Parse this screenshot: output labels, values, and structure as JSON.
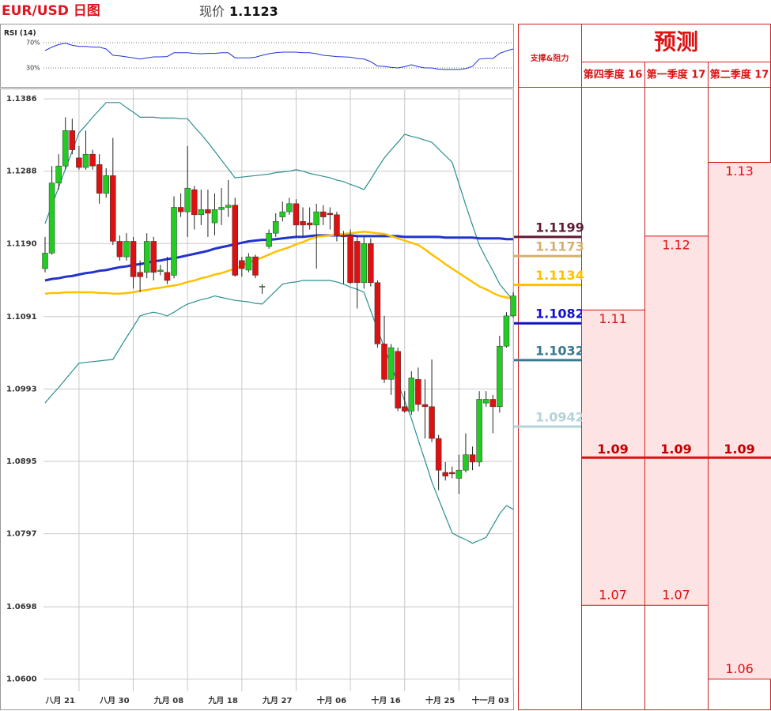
{
  "header": {
    "title": "EUR/USD 日图",
    "price_label": "现价",
    "price": 1.1123
  },
  "chart_data": [
    {
      "type": "candlestick",
      "categories": [
        null,
        null,
        null,
        null,
        null,
        "八月 21",
        null,
        null,
        null,
        null,
        null,
        null,
        null,
        "八月 30",
        null,
        null,
        null,
        null,
        null,
        null,
        null,
        "九月 08",
        null,
        null,
        null,
        null,
        null,
        null,
        null,
        "九月 18",
        null,
        null,
        null,
        null,
        null,
        null,
        null,
        "九月 27",
        null,
        null,
        null,
        null,
        null,
        null,
        null,
        "十月 06",
        null,
        null,
        null,
        null,
        null,
        null,
        null,
        "十月 16",
        null,
        null,
        null,
        null,
        null,
        null,
        null,
        "十月 25",
        null,
        null,
        null,
        null,
        null,
        null,
        null,
        "十一月 03"
      ],
      "open": [
        1.1156,
        1.1177,
        1.1272,
        1.1295,
        1.1343,
        1.1306,
        1.1293,
        1.1311,
        1.1297,
        1.1258,
        1.1282,
        1.1193,
        1.1172,
        1.1193,
        1.1151,
        1.1151,
        1.1193,
        1.1152,
        1.1151,
        1.1147,
        1.1239,
        1.1233,
        1.1263,
        1.1229,
        1.1236,
        1.1218,
        1.1236,
        1.1239,
        1.1242,
        1.1167,
        1.1154,
        1.1172,
        1.1132,
        1.1186,
        1.1204,
        1.1226,
        1.1233,
        1.1244,
        1.122,
        1.1218,
        1.1215,
        1.1233,
        1.1231,
        1.1229,
        1.1201,
        1.1201,
        1.1193,
        1.1137,
        1.119,
        1.1137,
        1.1054,
        1.1006,
        1.1044,
        1.0969,
        1.0963,
        1.1006,
        1.0972,
        1.0969,
        1.0926,
        1.088,
        1.088,
        1.0872,
        1.0883,
        1.0904,
        1.0894,
        1.0974,
        1.0979,
        1.0969,
        1.1051,
        1.1092
      ],
      "high": [
        1.1199,
        1.1295,
        1.1311,
        1.1361,
        1.1359,
        1.1322,
        1.1343,
        1.1317,
        1.1311,
        1.1292,
        1.1333,
        1.1201,
        1.1204,
        1.1199,
        1.1167,
        1.1204,
        1.1199,
        1.1161,
        1.1172,
        1.1254,
        1.1258,
        1.1322,
        1.1268,
        1.1263,
        1.1263,
        1.1258,
        1.1265,
        1.1276,
        1.1252,
        1.1172,
        1.1177,
        1.1175,
        1.1135,
        1.1209,
        1.1231,
        1.1247,
        1.1252,
        1.125,
        1.1239,
        1.1239,
        1.1244,
        1.1242,
        1.1239,
        1.1233,
        1.1207,
        1.1209,
        1.1201,
        1.1199,
        1.1197,
        1.114,
        1.1092,
        1.1054,
        1.1049,
        1.099,
        1.1017,
        1.1022,
        1.1006,
        1.1033,
        1.0931,
        1.0894,
        1.0888,
        1.0904,
        1.0933,
        1.0915,
        1.099,
        1.099,
        1.0985,
        1.1065,
        1.1097,
        1.1124
      ],
      "low": [
        1.1151,
        1.1175,
        1.1263,
        1.129,
        1.1311,
        1.129,
        1.129,
        1.129,
        1.1244,
        1.1252,
        1.1188,
        1.1167,
        1.1167,
        1.1129,
        1.1124,
        1.1143,
        1.114,
        1.1147,
        1.1135,
        1.1143,
        1.1226,
        1.1199,
        1.1209,
        1.1215,
        1.1199,
        1.1201,
        1.1215,
        1.1226,
        1.1145,
        1.1145,
        1.1151,
        1.1143,
        1.1122,
        1.1183,
        1.1199,
        1.122,
        1.1229,
        1.1199,
        1.1199,
        1.1209,
        1.1156,
        1.1215,
        1.1209,
        1.1193,
        1.1135,
        1.1135,
        1.1102,
        1.1129,
        1.1132,
        1.1049,
        1.1001,
        1.0985,
        1.0963,
        1.0961,
        1.0958,
        1.0963,
        1.0926,
        1.0921,
        1.0856,
        1.0869,
        1.0872,
        1.0851,
        1.088,
        1.0883,
        1.0888,
        1.0969,
        1.0933,
        1.0961,
        1.1049,
        1.109
      ],
      "close": [
        1.1177,
        1.1272,
        1.1295,
        1.1343,
        1.1317,
        1.1293,
        1.1311,
        1.1295,
        1.1258,
        1.1282,
        1.1193,
        1.1172,
        1.1193,
        1.1145,
        1.1145,
        1.1193,
        1.1151,
        1.1154,
        1.114,
        1.1239,
        1.1233,
        1.1265,
        1.1229,
        1.1236,
        1.1231,
        1.1236,
        1.1239,
        1.1242,
        1.1147,
        1.1156,
        1.1172,
        1.1147,
        1.1132,
        1.1204,
        1.122,
        1.1233,
        1.1244,
        1.1215,
        1.1215,
        1.1215,
        1.1233,
        1.1226,
        1.1229,
        1.1201,
        1.1199,
        1.1137,
        1.1137,
        1.119,
        1.1137,
        1.1054,
        1.1006,
        1.1049,
        1.0967,
        1.0963,
        1.1008,
        1.0972,
        1.0969,
        1.0926,
        1.0883,
        1.0875,
        1.0878,
        1.0883,
        1.0904,
        1.0894,
        1.0979,
        1.0979,
        1.0969,
        1.1051,
        1.1092,
        1.1119
      ],
      "up_color": "#22cc22",
      "down_color": "#dd1111",
      "lines": [
        {
          "color": "#2a8f8f",
          "values": [
            1.1217,
            1.1242,
            1.1266,
            1.1291,
            1.1315,
            1.134,
            1.135,
            1.1361,
            1.1371,
            1.1381,
            1.1381,
            1.1381,
            1.1374,
            1.1368,
            1.1361,
            1.1361,
            1.1361,
            1.136,
            1.136,
            1.136,
            1.1359,
            1.1359,
            1.1348,
            1.1338,
            1.1327,
            1.1315,
            1.1303,
            1.1291,
            1.1279,
            1.128,
            1.1281,
            1.1282,
            1.1283,
            1.1284,
            1.1286,
            1.1287,
            1.1288,
            1.129,
            1.1288,
            1.1285,
            1.1283,
            1.1281,
            1.1279,
            1.1276,
            1.1274,
            1.127,
            1.1267,
            1.1263,
            1.1277,
            1.1292,
            1.1306,
            1.1317,
            1.1327,
            1.1338,
            1.1335,
            1.1333,
            1.133,
            1.1327,
            1.1318,
            1.1309,
            1.13,
            1.1271,
            1.1242,
            1.1215,
            1.1188,
            1.117,
            1.1153,
            1.1135,
            1.1124,
            1.1113
          ]
        },
        {
          "color": "#2a8f8f",
          "values": [
            1.0974,
            1.0985,
            1.0995,
            1.1006,
            1.1017,
            1.1028,
            1.1029,
            1.103,
            1.1031,
            1.1032,
            1.1033,
            1.1048,
            1.1063,
            1.1077,
            1.1092,
            1.1095,
            1.1097,
            1.1095,
            1.1092,
            1.1097,
            1.1103,
            1.1108,
            1.1111,
            1.1114,
            1.1116,
            1.1119,
            1.1117,
            1.1115,
            1.1113,
            1.1112,
            1.1111,
            1.1109,
            1.1108,
            1.1117,
            1.1126,
            1.1135,
            1.1137,
            1.1138,
            1.114,
            1.114,
            1.114,
            1.114,
            1.114,
            1.1138,
            1.1135,
            1.1131,
            1.1128,
            1.1124,
            1.1099,
            1.1074,
            1.1049,
            1.1025,
            1.1001,
            1.0977,
            1.0953,
            1.0924,
            1.0896,
            1.0867,
            1.0844,
            1.0821,
            1.0798,
            1.0793,
            1.0789,
            1.0784,
            1.0788,
            1.0792,
            1.0808,
            1.0824,
            1.0835,
            1.083
          ]
        },
        {
          "color": "#2233cc",
          "values": [
            1.114,
            1.1142,
            1.1143,
            1.1145,
            1.1146,
            1.1148,
            1.115,
            1.1151,
            1.1153,
            1.1154,
            1.1156,
            1.1158,
            1.1159,
            1.1161,
            1.1162,
            1.1164,
            1.1166,
            1.1167,
            1.1169,
            1.117,
            1.1172,
            1.1174,
            1.1176,
            1.1178,
            1.118,
            1.1183,
            1.1185,
            1.1187,
            1.1189,
            1.1191,
            1.1193,
            1.1194,
            1.1195,
            1.1195,
            1.1196,
            1.1197,
            1.1198,
            1.1199,
            1.1199,
            1.12,
            1.1201,
            1.1201,
            1.1201,
            1.1201,
            1.1201,
            1.1201,
            1.12,
            1.12,
            1.12,
            1.12,
            1.12,
            1.12,
            1.12,
            1.1199,
            1.1199,
            1.1199,
            1.1199,
            1.1199,
            1.1199,
            1.1198,
            1.1198,
            1.1198,
            1.1198,
            1.1198,
            1.1197,
            1.1197,
            1.1197,
            1.1197,
            1.1196,
            1.1196
          ]
        },
        {
          "color": "#ffc000",
          "values": [
            1.1122,
            1.1123,
            1.1123,
            1.1124,
            1.1124,
            1.1124,
            1.1124,
            1.1124,
            1.1123,
            1.1123,
            1.1122,
            1.1122,
            1.1123,
            1.1124,
            1.1126,
            1.1127,
            1.1129,
            1.113,
            1.1132,
            1.1133,
            1.1135,
            1.1138,
            1.114,
            1.1143,
            1.1145,
            1.1148,
            1.115,
            1.1153,
            1.1156,
            1.116,
            1.1164,
            1.1168,
            1.1171,
            1.1175,
            1.1179,
            1.1182,
            1.1185,
            1.1189,
            1.1192,
            1.1196,
            1.1199,
            1.12,
            1.1201,
            1.1202,
            1.1203,
            1.1204,
            1.1205,
            1.1206,
            1.1205,
            1.1204,
            1.1203,
            1.12,
            1.1197,
            1.1194,
            1.1191,
            1.1188,
            1.1182,
            1.1175,
            1.1169,
            1.1162,
            1.1156,
            1.115,
            1.1144,
            1.1138,
            1.1132,
            1.1128,
            1.1123,
            1.1119,
            1.1117,
            1.1115
          ]
        }
      ],
      "levels_title": "支撑&阻力",
      "levels": [
        {
          "value": 1.1199,
          "color": "#5c1a33"
        },
        {
          "value": 1.1173,
          "color": "#d4b06a"
        },
        {
          "value": 1.1134,
          "color": "#ffc000"
        },
        {
          "value": 1.1082,
          "color": "#1111cc"
        },
        {
          "value": 1.1032,
          "color": "#3a7892"
        },
        {
          "value": 1.0942,
          "color": "#b3d3d8"
        }
      ],
      "ylim": [
        1.0559,
        1.14
      ],
      "yticks": [
        1.1386,
        1.1288,
        {
          "value": 1.119,
          "label": "1.1190"
        },
        1.1091,
        1.0993,
        1.0895,
        1.0797,
        1.0698,
        {
          "value": 1.06,
          "label": "1.0600"
        }
      ],
      "grid": true
    },
    {
      "type": "line",
      "title": "RSI (14)",
      "color": "#2233dd",
      "values": [
        57.5,
        63,
        67,
        69,
        66,
        64,
        64,
        63,
        63,
        60,
        50,
        49,
        47.5,
        46,
        44,
        46,
        47.5,
        47.5,
        48,
        54,
        54,
        54,
        53,
        52.5,
        53,
        53,
        54,
        54,
        46,
        46,
        46,
        47,
        50,
        52.5,
        54,
        55,
        55,
        55,
        54,
        54,
        52.5,
        50,
        49,
        48,
        47.5,
        47,
        45,
        44,
        40,
        33,
        32.5,
        31,
        30,
        32,
        35,
        32,
        30,
        30,
        28,
        27.5,
        27.5,
        27.5,
        29,
        32.5,
        44,
        45,
        45,
        53,
        57,
        60
      ],
      "ylim": [
        0,
        100
      ],
      "yticks": [
        {
          "value": 70,
          "label": "70%"
        },
        {
          "value": 30,
          "label": "30%"
        }
      ]
    },
    {
      "type": "range",
      "title": "预测",
      "categories": [
        "第四季度 16",
        "第一季度 17",
        "第二季度 17"
      ],
      "high": [
        1.11,
        1.12,
        1.13
      ],
      "mid": [
        1.09,
        1.09,
        1.09
      ],
      "low": [
        1.07,
        1.07,
        1.06
      ],
      "color": "#dd1111",
      "fill": "#fde3e3"
    }
  ]
}
